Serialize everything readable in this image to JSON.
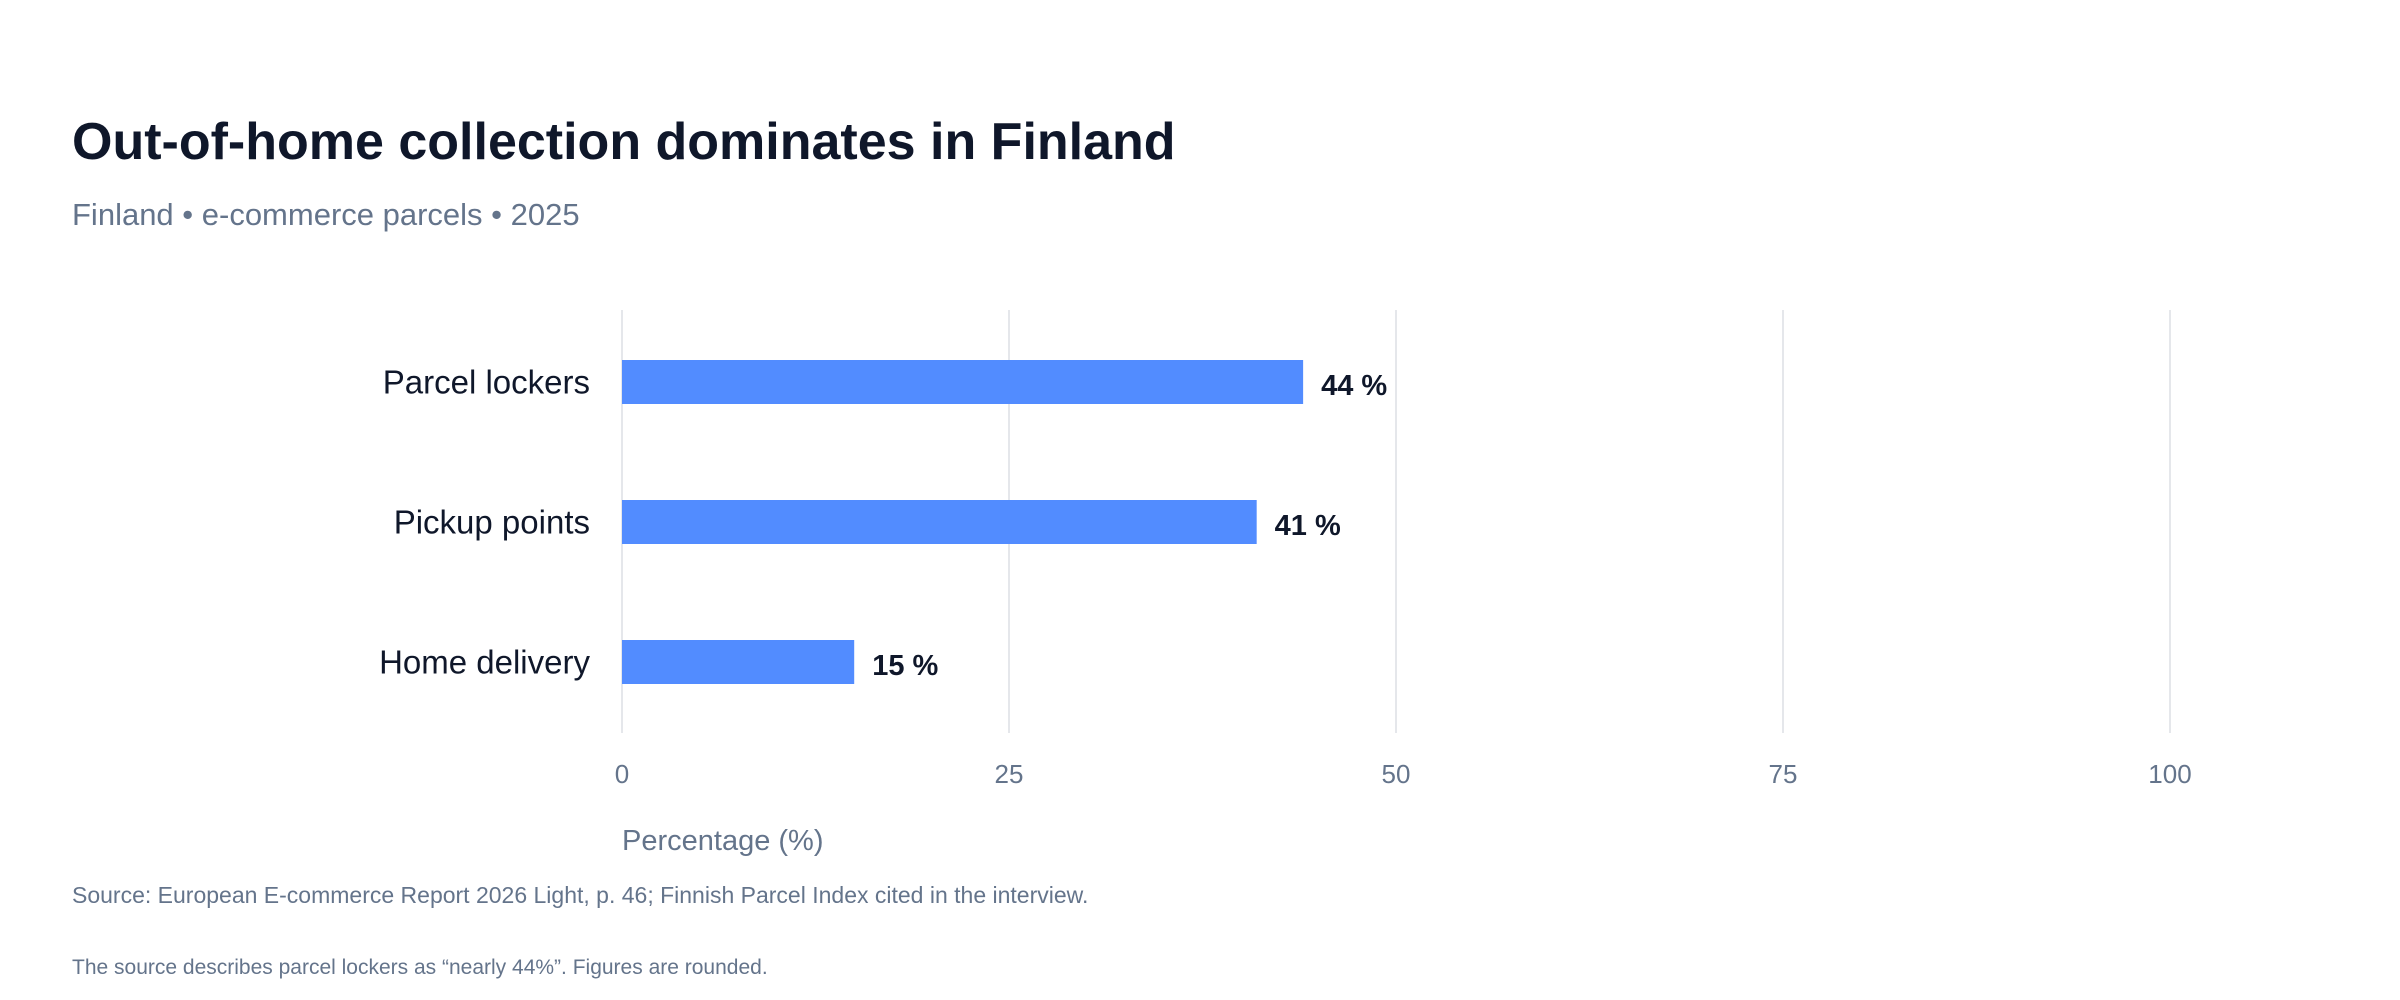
{
  "chart_data": {
    "type": "bar",
    "orientation": "horizontal",
    "title": "Out-of-home collection dominates in Finland",
    "subtitle": "Finland • e-commerce parcels • 2025",
    "categories": [
      "Parcel lockers",
      "Pickup points",
      "Home delivery"
    ],
    "values": [
      44,
      41,
      15
    ],
    "value_labels": [
      "44 %",
      "41 %",
      "15 %"
    ],
    "xlabel": "Percentage (%)",
    "ylabel": "",
    "xlim": [
      0,
      100
    ],
    "xticks": [
      0,
      25,
      50,
      75,
      100
    ],
    "grid": true,
    "legend": "none",
    "bar_color": "#528cff",
    "source": "Source: European E-commerce Report 2026 Light, p. 46; Finnish Parcel Index cited in the interview.",
    "note": "The source describes parcel lockers as “nearly 44%”. Figures are rounded."
  }
}
